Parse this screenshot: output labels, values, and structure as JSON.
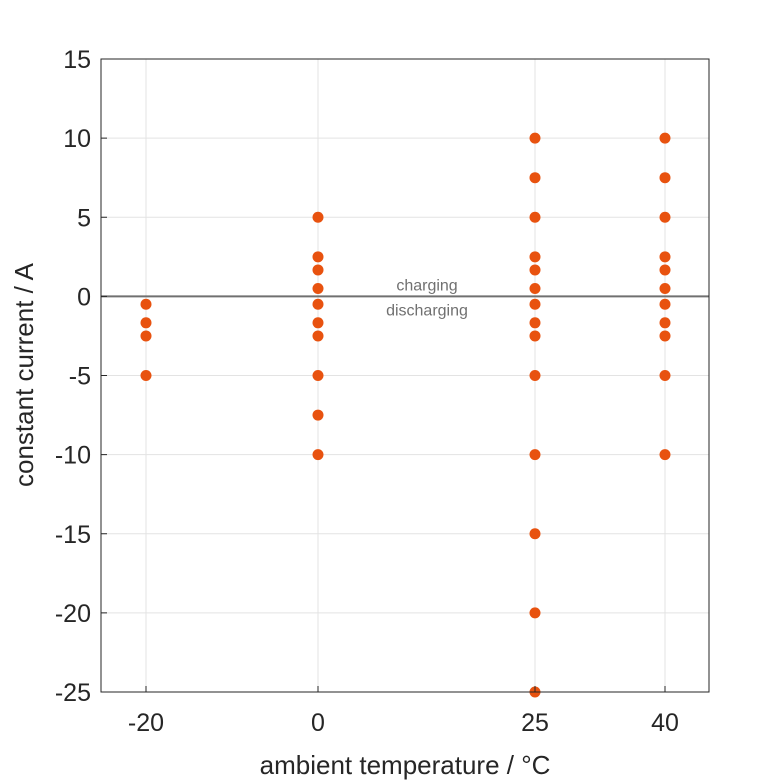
{
  "chart_data": {
    "type": "scatter",
    "title": "",
    "xlabel": "ambient temperature / °C",
    "ylabel": "constant current / A",
    "xlim": [
      -20,
      40
    ],
    "ylim": [
      -25,
      15
    ],
    "x_scale": "categorical",
    "x_categories": [
      -20,
      0,
      25,
      40
    ],
    "xticks": [
      "-20",
      "0",
      "25",
      "40"
    ],
    "yticks": [
      "15",
      "10",
      "5",
      "0",
      "-5",
      "-10",
      "-15",
      "-20",
      "-25"
    ],
    "ytick_values": [
      15,
      10,
      5,
      0,
      -5,
      -10,
      -15,
      -20,
      -25
    ],
    "grid": true,
    "marker_color": "#E8520F",
    "reference_line": {
      "y": 0,
      "color": "#707070"
    },
    "annotations": {
      "upper": "charging",
      "lower": "discharging"
    },
    "points": [
      {
        "x": -20,
        "y": -0.5
      },
      {
        "x": -20,
        "y": -1.67
      },
      {
        "x": -20,
        "y": -2.5
      },
      {
        "x": -20,
        "y": -5
      },
      {
        "x": 0,
        "y": 5
      },
      {
        "x": 0,
        "y": 2.5
      },
      {
        "x": 0,
        "y": 1.67
      },
      {
        "x": 0,
        "y": 0.5
      },
      {
        "x": 0,
        "y": -0.5
      },
      {
        "x": 0,
        "y": -1.67
      },
      {
        "x": 0,
        "y": -2.5
      },
      {
        "x": 0,
        "y": -5
      },
      {
        "x": 0,
        "y": -7.5
      },
      {
        "x": 0,
        "y": -10
      },
      {
        "x": 25,
        "y": 10
      },
      {
        "x": 25,
        "y": 7.5
      },
      {
        "x": 25,
        "y": 5
      },
      {
        "x": 25,
        "y": 2.5
      },
      {
        "x": 25,
        "y": 1.67
      },
      {
        "x": 25,
        "y": 0.5
      },
      {
        "x": 25,
        "y": -0.5
      },
      {
        "x": 25,
        "y": -1.67
      },
      {
        "x": 25,
        "y": -2.5
      },
      {
        "x": 25,
        "y": -5
      },
      {
        "x": 25,
        "y": -10
      },
      {
        "x": 25,
        "y": -15
      },
      {
        "x": 25,
        "y": -20
      },
      {
        "x": 25,
        "y": -25
      },
      {
        "x": 40,
        "y": 10
      },
      {
        "x": 40,
        "y": 7.5
      },
      {
        "x": 40,
        "y": 5
      },
      {
        "x": 40,
        "y": 2.5
      },
      {
        "x": 40,
        "y": 1.67
      },
      {
        "x": 40,
        "y": 0.5
      },
      {
        "x": 40,
        "y": -0.5
      },
      {
        "x": 40,
        "y": -1.67
      },
      {
        "x": 40,
        "y": -2.5
      },
      {
        "x": 40,
        "y": -5
      },
      {
        "x": 40,
        "y": -10
      }
    ]
  }
}
